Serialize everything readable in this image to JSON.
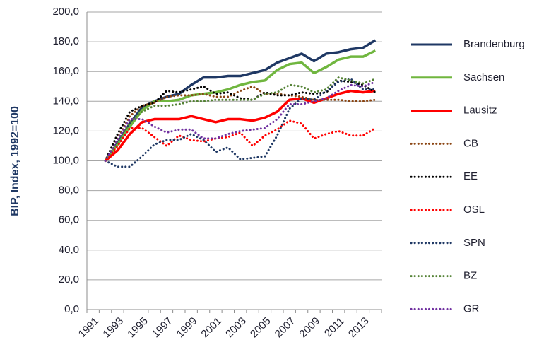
{
  "chart_data": {
    "type": "line",
    "y_label": "BIP, Index, 1992=100",
    "categories": [
      "1991",
      null,
      "1993",
      null,
      "1995",
      null,
      "1997",
      null,
      "1999",
      null,
      "2001",
      null,
      "2003",
      null,
      "2005",
      null,
      "2007",
      null,
      "2009",
      null,
      "2011",
      null,
      "2013",
      null
    ],
    "ylim": [
      0,
      200
    ],
    "yticks": [
      {
        "value": 0,
        "label": "0,0"
      },
      {
        "value": 20,
        "label": "20,0"
      },
      {
        "value": 40,
        "label": "40,0"
      },
      {
        "value": 60,
        "label": "60,0"
      },
      {
        "value": 80,
        "label": "80,0"
      },
      {
        "value": 100,
        "label": "100,0"
      },
      {
        "value": 120,
        "label": "120,0"
      },
      {
        "value": 140,
        "label": "140,0"
      },
      {
        "value": 160,
        "label": "160,0"
      },
      {
        "value": 180,
        "label": "180,0"
      },
      {
        "value": 200,
        "label": "200,0"
      }
    ],
    "grid": true,
    "legend": "right",
    "series": [
      {
        "name": "Brandenburg",
        "color": "#1f3864",
        "linestyle": "solid",
        "values": [
          null,
          100,
          112,
          125,
          136,
          140,
          143,
          145,
          151,
          156,
          156,
          157,
          157,
          159,
          161,
          166,
          169,
          172,
          167,
          172,
          173,
          175,
          176,
          181
        ]
      },
      {
        "name": "Sachsen",
        "color": "#70b63f",
        "linestyle": "solid",
        "values": [
          null,
          100,
          111,
          123,
          134,
          140,
          140,
          141,
          144,
          145,
          146,
          148,
          151,
          153,
          154,
          161,
          165,
          166,
          159,
          163,
          168,
          170,
          170,
          174
        ]
      },
      {
        "name": "Lausitz",
        "color": "#ff0000",
        "linestyle": "solid",
        "values": [
          null,
          100,
          107,
          118,
          126,
          128,
          128,
          128,
          130,
          128,
          126,
          128,
          128,
          127,
          129,
          133,
          141,
          142,
          139,
          142,
          145,
          147,
          146,
          147
        ]
      },
      {
        "name": "CB",
        "color": "#8b4513",
        "linestyle": "dotted",
        "values": [
          null,
          100,
          115,
          130,
          137,
          139,
          143,
          144,
          144,
          145,
          143,
          143,
          147,
          150,
          145,
          145,
          144,
          143,
          141,
          141,
          141,
          140,
          140,
          141
        ]
      },
      {
        "name": "EE",
        "color": "#000000",
        "linestyle": "dotted",
        "values": [
          null,
          100,
          118,
          133,
          137,
          139,
          147,
          146,
          148,
          150,
          145,
          146,
          142,
          141,
          146,
          144,
          144,
          146,
          145,
          146,
          154,
          153,
          151,
          146
        ]
      },
      {
        "name": "OSL",
        "color": "#ff0000",
        "linestyle": "dotted",
        "values": [
          null,
          100,
          110,
          122,
          122,
          116,
          110,
          117,
          114,
          113,
          115,
          116,
          119,
          110,
          117,
          121,
          127,
          125,
          115,
          118,
          120,
          117,
          117,
          122
        ]
      },
      {
        "name": "SPN",
        "color": "#1f3864",
        "linestyle": "dotted",
        "values": [
          null,
          100,
          96,
          96,
          103,
          111,
          114,
          114,
          118,
          114,
          106,
          109,
          101,
          102,
          103,
          117,
          135,
          142,
          141,
          147,
          153,
          155,
          148,
          148
        ]
      },
      {
        "name": "BZ",
        "color": "#548235",
        "linestyle": "dotted",
        "values": [
          null,
          100,
          112,
          126,
          133,
          137,
          137,
          138,
          140,
          140,
          141,
          141,
          141,
          141,
          145,
          146,
          151,
          150,
          146,
          148,
          156,
          154,
          152,
          155
        ]
      },
      {
        "name": "GR",
        "color": "#7030a0",
        "linestyle": "dotted",
        "values": [
          null,
          100,
          114,
          128,
          128,
          123,
          119,
          121,
          121,
          115,
          115,
          118,
          120,
          121,
          122,
          128,
          138,
          138,
          140,
          142,
          147,
          151,
          150,
          153
        ]
      }
    ]
  }
}
